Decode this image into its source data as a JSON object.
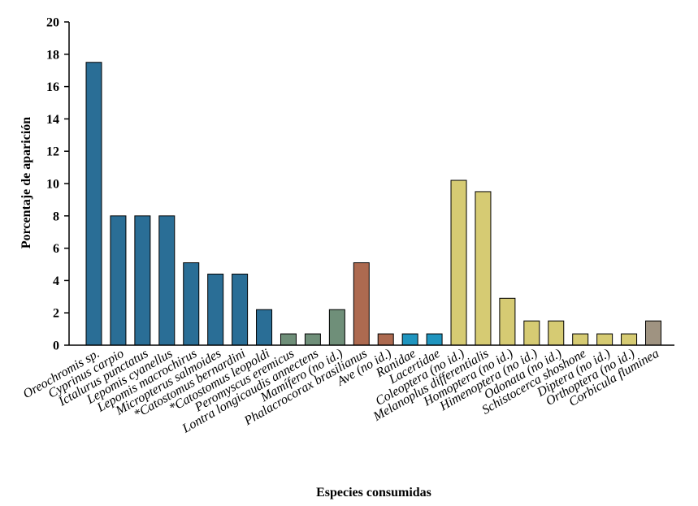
{
  "chart_data": {
    "type": "bar",
    "xlabel": "Especies consumidas",
    "ylabel": "Porcentaje de aparición",
    "ylim": [
      0,
      20
    ],
    "yticks": [
      "0",
      "2",
      "4",
      "6",
      "8",
      "10",
      "12",
      "14",
      "16",
      "18",
      "20"
    ],
    "grid": false,
    "categories": [
      "Oreochromis sp.",
      "Cyprinus carpio",
      "Ictalurus punctatus",
      "Lepomis cyanellus",
      "Lepomis macrochirus",
      "Micropterus salmoides",
      "*Catostomus bernardini",
      "*Catostomus leopoldi",
      "Peromyscus eremicus",
      "Lontra longicaudis annectens",
      "Mamífero (no id.)",
      "Phalacrocorax brasilianus",
      "Ave (no id.)",
      "Ranidae",
      "Lacertidae",
      "Coleoptera (no id.)",
      "Melanoplus differentialis",
      "Homoptera (no id.)",
      "Himenoptera (no id.)",
      "Odonata (no id.)",
      "Schistocerca shoshone",
      "Diptera (no id.)",
      "Orthoptera (no id.)",
      "Corbicula fluminea"
    ],
    "values": [
      17.5,
      8,
      8,
      8,
      5.1,
      4.4,
      4.4,
      2.2,
      0.7,
      0.7,
      2.2,
      5.1,
      0.7,
      0.7,
      0.7,
      10.2,
      9.5,
      2.9,
      1.5,
      1.5,
      0.7,
      0.7,
      0.7,
      1.5
    ],
    "colors": [
      "#2a6e96",
      "#2a6e96",
      "#2a6e96",
      "#2a6e96",
      "#2a6e96",
      "#2a6e96",
      "#2a6e96",
      "#2a6e96",
      "#6f8f79",
      "#6f8f79",
      "#6f8f79",
      "#ad6a50",
      "#ad6a50",
      "#1f95bf",
      "#1f95bf",
      "#d6cb73",
      "#d6cb73",
      "#d6cb73",
      "#d6cb73",
      "#d6cb73",
      "#d6cb73",
      "#d6cb73",
      "#d6cb73",
      "#9f9381"
    ]
  }
}
